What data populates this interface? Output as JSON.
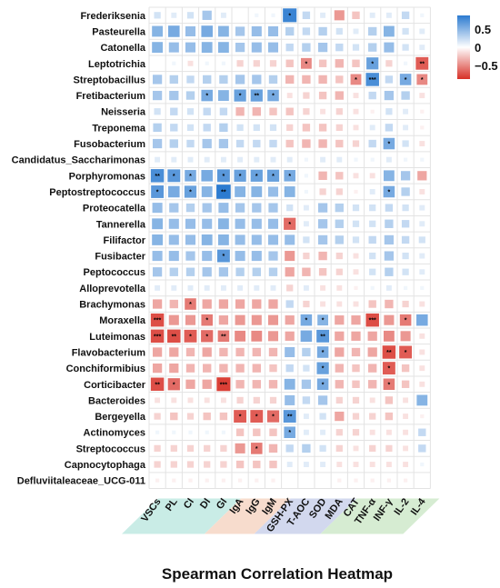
{
  "chart_data": {
    "type": "heatmap",
    "title": "Spearman Correlation Heatmap",
    "rows": [
      "Frederiksenia",
      "Pasteurella",
      "Catonella",
      "Leptotrichia",
      "Streptobacillus",
      "Fretibacterium",
      "Neisseria",
      "Treponema",
      "Fusobacterium",
      "Candidatus_Saccharimonas",
      "Porphyromonas",
      "Peptostreptococcus",
      "Proteocatella",
      "Tannerella",
      "Filifactor",
      "Fusibacter",
      "Peptococcus",
      "Alloprevotella",
      "Brachymonas",
      "Moraxella",
      "Luteimonas",
      "Flavobacterium",
      "Conchiformibius",
      "Corticibacter",
      "Bacteroides",
      "Bergeyella",
      "Actinomyces",
      "Streptococcus",
      "Capnocytophaga",
      "Defluviitaleaceae_UCG-011"
    ],
    "columns": [
      "VSCs",
      "PL",
      "CI",
      "DI",
      "GI",
      "IgA",
      "IgG",
      "IgM",
      "GSH-PX",
      "T-AOC",
      "SOD",
      "MDA",
      "CAT",
      "TNF-α",
      "INF-γ",
      "IL-2",
      "IL-4"
    ],
    "column_groups": [
      {
        "color": "#c9ece6",
        "span": [
          0,
          4
        ]
      },
      {
        "color": "#f7dccd",
        "span": [
          5,
          7
        ]
      },
      {
        "color": "#d2d8ee",
        "span": [
          8,
          11
        ]
      },
      {
        "color": "#d6ecd2",
        "span": [
          12,
          16
        ]
      }
    ],
    "colorscale": {
      "low": "#d73027",
      "mid": "#ffffff",
      "high": "#2c7bd0",
      "range": [
        -0.7,
        0.7
      ]
    },
    "legend": {
      "position": "top-right",
      "ticks": [
        0.5,
        0,
        -0.5
      ],
      "tick_labels": [
        "0.5",
        "0",
        "−0.5"
      ]
    },
    "values": [
      [
        0.15,
        0.1,
        0.15,
        0.3,
        0.1,
        0.0,
        0.05,
        0.05,
        0.65,
        0.2,
        0.1,
        -0.35,
        -0.2,
        0.1,
        0.1,
        0.2,
        0.05
      ],
      [
        0.4,
        0.45,
        0.35,
        0.45,
        0.4,
        0.3,
        0.35,
        0.35,
        0.25,
        0.2,
        0.25,
        0.15,
        0.1,
        0.25,
        0.4,
        0.15,
        0.1
      ],
      [
        0.4,
        0.35,
        0.35,
        0.4,
        0.4,
        0.3,
        0.35,
        0.35,
        0.2,
        0.25,
        0.3,
        0.2,
        0.15,
        0.25,
        0.35,
        0.15,
        0.1
      ],
      [
        0.0,
        0.05,
        -0.1,
        0.05,
        0.05,
        -0.15,
        -0.15,
        -0.15,
        -0.2,
        -0.4,
        -0.2,
        -0.25,
        -0.2,
        0.5,
        -0.15,
        0.05,
        -0.55
      ],
      [
        0.3,
        0.25,
        0.2,
        0.25,
        0.25,
        0.3,
        0.3,
        0.25,
        -0.25,
        -0.25,
        -0.25,
        -0.2,
        -0.4,
        0.6,
        0.2,
        0.45,
        -0.4
      ],
      [
        0.3,
        0.3,
        0.25,
        0.45,
        0.4,
        0.5,
        0.5,
        0.45,
        -0.1,
        -0.15,
        -0.2,
        -0.25,
        -0.1,
        0.2,
        0.3,
        0.25,
        -0.1
      ],
      [
        0.15,
        0.2,
        0.15,
        0.2,
        0.2,
        -0.25,
        -0.25,
        -0.2,
        -0.2,
        -0.15,
        -0.1,
        -0.15,
        -0.1,
        -0.05,
        0.15,
        0.1,
        -0.05
      ],
      [
        0.25,
        0.2,
        0.15,
        0.2,
        0.25,
        0.15,
        0.15,
        0.15,
        -0.15,
        -0.2,
        -0.2,
        -0.15,
        -0.1,
        0.1,
        0.2,
        0.1,
        -0.05
      ],
      [
        0.3,
        0.25,
        0.2,
        0.3,
        0.3,
        0.2,
        0.2,
        0.2,
        -0.2,
        -0.25,
        -0.25,
        -0.2,
        -0.15,
        0.2,
        0.45,
        0.15,
        -0.1
      ],
      [
        0.1,
        0.1,
        0.1,
        0.1,
        0.1,
        0.1,
        0.1,
        0.1,
        0.1,
        0.05,
        0.1,
        0.1,
        0.05,
        0.05,
        0.1,
        0.05,
        0.05
      ],
      [
        0.6,
        0.55,
        0.45,
        0.45,
        0.55,
        0.5,
        0.5,
        0.5,
        0.45,
        0.05,
        -0.25,
        -0.2,
        -0.1,
        -0.1,
        0.4,
        0.3,
        -0.3
      ],
      [
        0.55,
        0.45,
        0.5,
        0.4,
        0.7,
        0.4,
        0.4,
        0.35,
        0.4,
        0.05,
        -0.15,
        -0.15,
        -0.05,
        0.1,
        0.45,
        0.25,
        -0.1
      ],
      [
        0.35,
        0.3,
        0.25,
        0.3,
        0.35,
        0.3,
        0.3,
        0.3,
        0.15,
        0.1,
        0.3,
        0.25,
        0.15,
        0.15,
        0.2,
        0.15,
        0.1
      ],
      [
        0.4,
        0.35,
        0.35,
        0.35,
        0.4,
        0.35,
        0.35,
        0.35,
        -0.5,
        0.1,
        0.3,
        0.25,
        0.15,
        0.15,
        0.25,
        0.2,
        0.1
      ],
      [
        0.4,
        0.35,
        0.35,
        0.4,
        0.4,
        0.35,
        0.35,
        0.35,
        0.35,
        0.15,
        0.3,
        0.25,
        0.15,
        0.2,
        0.3,
        0.2,
        0.15
      ],
      [
        0.35,
        0.35,
        0.3,
        0.35,
        0.55,
        0.35,
        0.35,
        0.3,
        -0.35,
        -0.15,
        -0.25,
        -0.15,
        -0.1,
        0.15,
        0.3,
        0.15,
        0.1
      ],
      [
        0.3,
        0.25,
        0.25,
        0.3,
        0.3,
        0.25,
        0.25,
        0.25,
        -0.3,
        -0.25,
        -0.2,
        -0.15,
        -0.1,
        0.15,
        0.25,
        0.15,
        0.1
      ],
      [
        0.1,
        0.1,
        0.1,
        0.1,
        0.1,
        0.1,
        0.1,
        0.1,
        -0.15,
        0.1,
        -0.1,
        -0.1,
        -0.05,
        0.05,
        0.1,
        0.05,
        0.05
      ],
      [
        -0.3,
        -0.25,
        -0.45,
        -0.3,
        -0.3,
        -0.3,
        -0.3,
        -0.3,
        0.2,
        -0.15,
        -0.1,
        -0.1,
        -0.1,
        -0.2,
        -0.25,
        -0.15,
        -0.1
      ],
      [
        -0.6,
        -0.35,
        -0.35,
        -0.45,
        -0.3,
        -0.35,
        -0.35,
        -0.35,
        -0.3,
        0.45,
        0.4,
        -0.3,
        -0.3,
        -0.6,
        -0.35,
        -0.45,
        0.45
      ],
      [
        -0.6,
        -0.6,
        -0.55,
        -0.5,
        -0.45,
        -0.4,
        -0.4,
        -0.35,
        -0.3,
        0.45,
        0.55,
        -0.3,
        -0.3,
        -0.3,
        -0.4,
        -0.35,
        -0.1
      ],
      [
        -0.3,
        -0.3,
        -0.25,
        -0.3,
        -0.25,
        -0.25,
        -0.25,
        -0.25,
        0.35,
        0.25,
        0.45,
        -0.3,
        -0.25,
        -0.3,
        -0.6,
        -0.55,
        -0.1
      ],
      [
        -0.3,
        -0.3,
        -0.25,
        -0.25,
        -0.25,
        -0.25,
        -0.25,
        -0.2,
        0.2,
        0.15,
        0.5,
        -0.25,
        -0.2,
        -0.25,
        -0.55,
        -0.2,
        -0.1
      ],
      [
        -0.6,
        -0.5,
        -0.3,
        -0.3,
        -0.65,
        -0.25,
        -0.25,
        -0.25,
        0.4,
        0.3,
        0.45,
        -0.25,
        -0.2,
        -0.25,
        -0.45,
        -0.2,
        -0.1
      ],
      [
        -0.1,
        -0.1,
        -0.1,
        -0.1,
        -0.1,
        -0.15,
        -0.15,
        -0.15,
        0.35,
        0.2,
        0.3,
        -0.15,
        -0.15,
        -0.1,
        -0.2,
        -0.1,
        0.4
      ],
      [
        -0.15,
        -0.2,
        -0.15,
        -0.2,
        -0.2,
        -0.55,
        -0.55,
        -0.5,
        0.55,
        0.1,
        0.15,
        -0.3,
        -0.15,
        -0.15,
        -0.2,
        -0.1,
        -0.05
      ],
      [
        0.05,
        0.05,
        0.05,
        0.05,
        0.05,
        -0.2,
        -0.2,
        -0.2,
        0.45,
        0.1,
        0.1,
        -0.15,
        -0.15,
        -0.1,
        -0.1,
        -0.1,
        0.2
      ],
      [
        -0.15,
        -0.15,
        -0.15,
        -0.15,
        -0.15,
        -0.35,
        -0.45,
        -0.25,
        0.2,
        0.25,
        0.15,
        -0.15,
        -0.1,
        -0.15,
        -0.15,
        -0.1,
        0.2
      ],
      [
        -0.15,
        -0.15,
        -0.15,
        -0.15,
        -0.15,
        -0.2,
        -0.2,
        -0.2,
        0.1,
        0.1,
        0.1,
        -0.1,
        -0.1,
        -0.1,
        -0.1,
        -0.1,
        0.05
      ],
      [
        -0.05,
        -0.05,
        -0.05,
        -0.05,
        -0.05,
        -0.05,
        -0.05,
        -0.05,
        0.0,
        0.0,
        0.0,
        -0.05,
        -0.05,
        -0.05,
        -0.05,
        -0.05,
        0.0
      ]
    ],
    "stars": [
      [
        0,
        8,
        "*"
      ],
      [
        3,
        9,
        "*"
      ],
      [
        3,
        13,
        "*"
      ],
      [
        3,
        16,
        "**"
      ],
      [
        4,
        12,
        "*"
      ],
      [
        4,
        13,
        "***"
      ],
      [
        4,
        15,
        "*"
      ],
      [
        4,
        16,
        "*"
      ],
      [
        5,
        3,
        "*"
      ],
      [
        5,
        5,
        "*"
      ],
      [
        5,
        6,
        "**"
      ],
      [
        5,
        7,
        "*"
      ],
      [
        8,
        14,
        "*"
      ],
      [
        10,
        0,
        "**"
      ],
      [
        10,
        1,
        "*"
      ],
      [
        10,
        2,
        "*"
      ],
      [
        10,
        4,
        "*"
      ],
      [
        10,
        5,
        "*"
      ],
      [
        10,
        6,
        "*"
      ],
      [
        10,
        7,
        "*"
      ],
      [
        10,
        8,
        "*"
      ],
      [
        11,
        0,
        "*"
      ],
      [
        11,
        2,
        "*"
      ],
      [
        11,
        4,
        "**"
      ],
      [
        11,
        14,
        "*"
      ],
      [
        13,
        8,
        "*"
      ],
      [
        15,
        4,
        "*"
      ],
      [
        18,
        2,
        "*"
      ],
      [
        19,
        0,
        "***"
      ],
      [
        19,
        3,
        "*"
      ],
      [
        19,
        9,
        "*"
      ],
      [
        19,
        10,
        "*"
      ],
      [
        19,
        13,
        "***"
      ],
      [
        19,
        15,
        "*"
      ],
      [
        20,
        0,
        "***"
      ],
      [
        20,
        1,
        "**"
      ],
      [
        20,
        2,
        "*"
      ],
      [
        20,
        3,
        "*"
      ],
      [
        20,
        4,
        "**"
      ],
      [
        20,
        10,
        "**"
      ],
      [
        21,
        10,
        "*"
      ],
      [
        21,
        14,
        "**"
      ],
      [
        21,
        15,
        "*"
      ],
      [
        22,
        10,
        "*"
      ],
      [
        22,
        14,
        "*"
      ],
      [
        23,
        0,
        "**"
      ],
      [
        23,
        1,
        "*"
      ],
      [
        23,
        4,
        "***"
      ],
      [
        23,
        10,
        "*"
      ],
      [
        23,
        14,
        "*"
      ],
      [
        25,
        5,
        "*"
      ],
      [
        25,
        6,
        "*"
      ],
      [
        25,
        7,
        "*"
      ],
      [
        25,
        8,
        "**"
      ],
      [
        26,
        8,
        "*"
      ],
      [
        27,
        6,
        "*"
      ]
    ]
  }
}
